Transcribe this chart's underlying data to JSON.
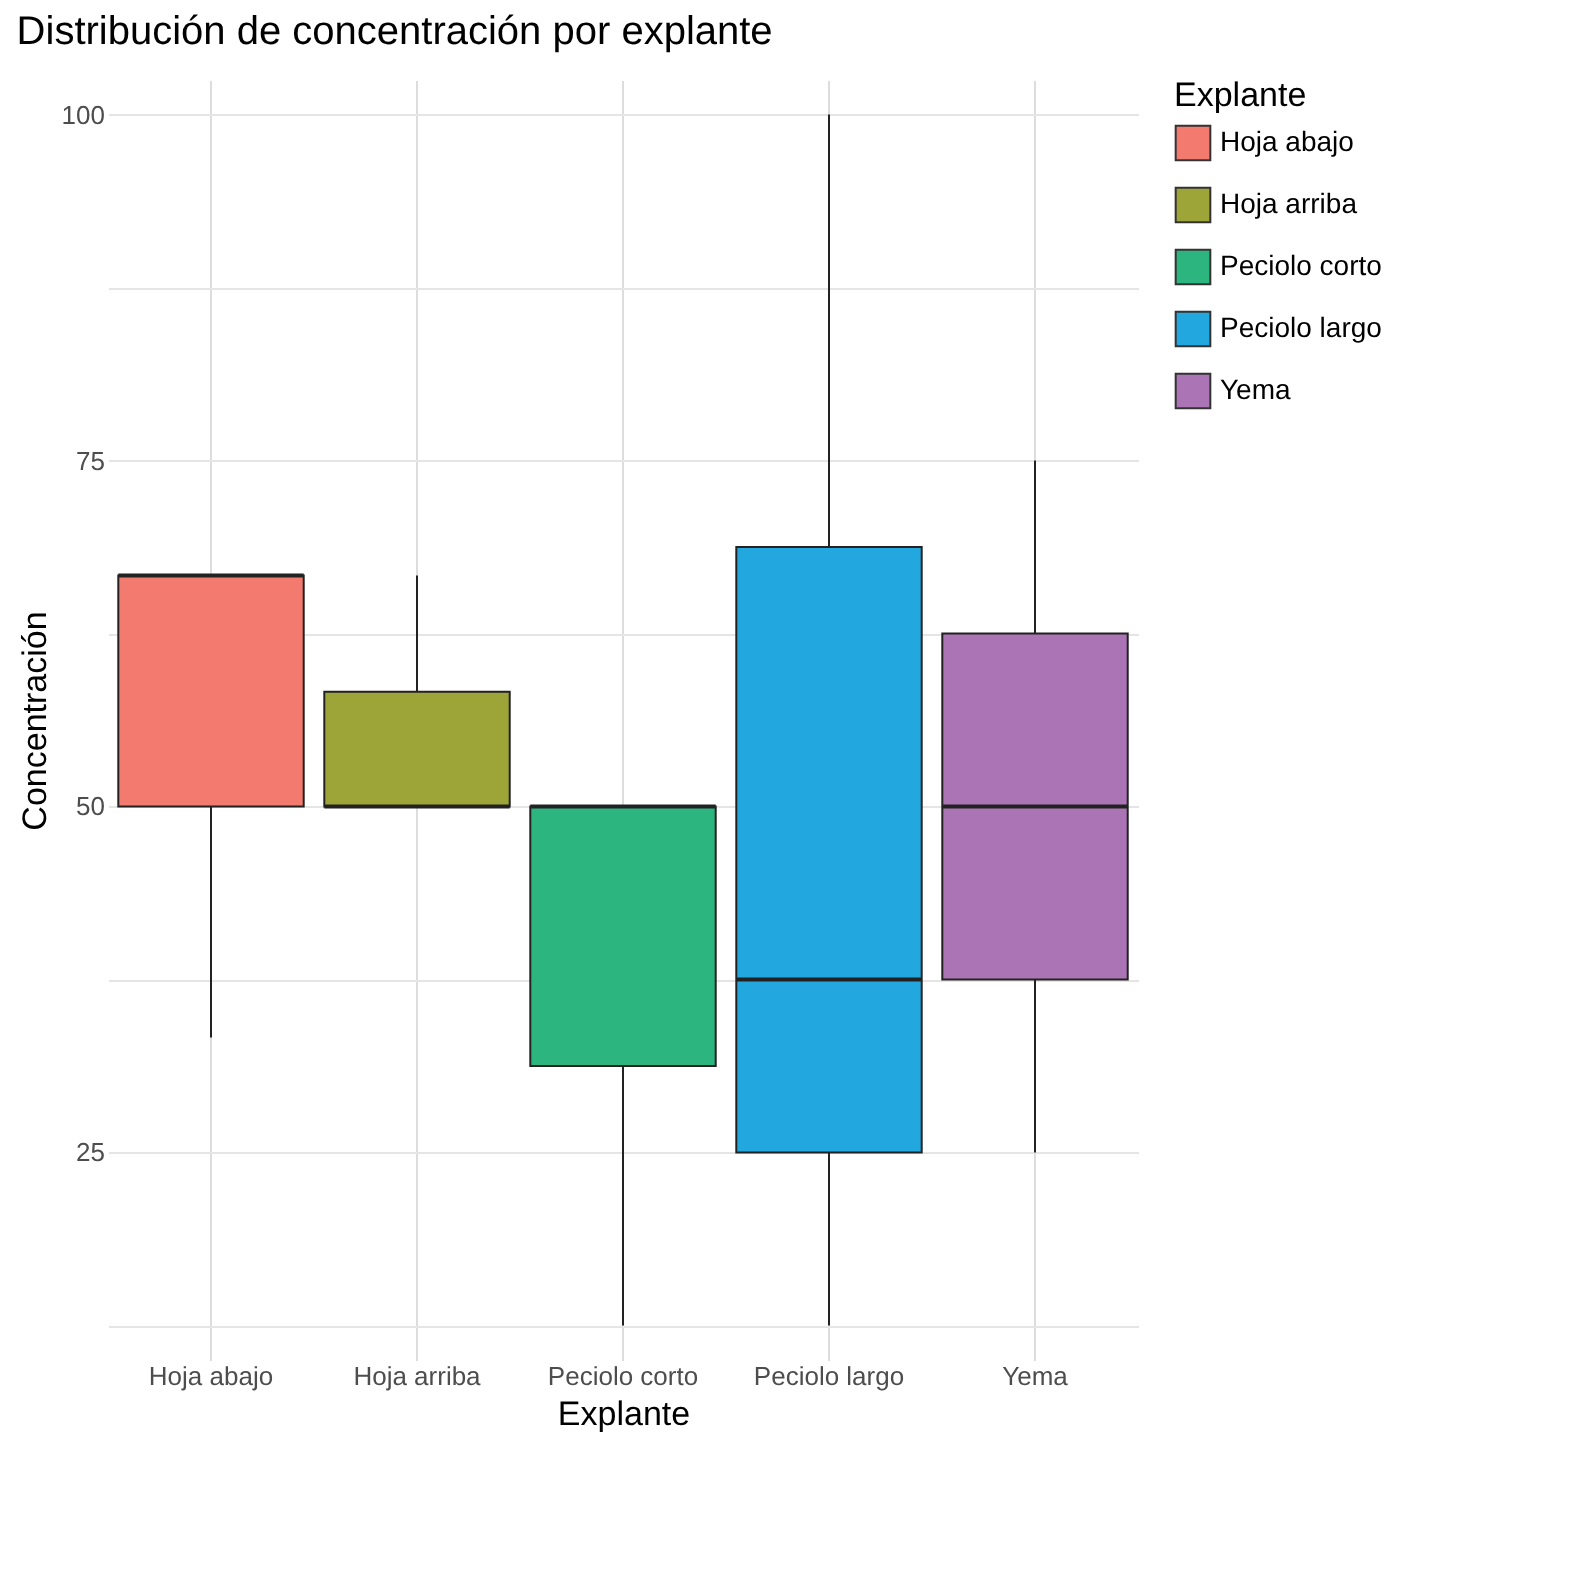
{
  "chart_data": {
    "type": "box",
    "title": "Distribución de concentración por explante",
    "xlabel": "Explante",
    "ylabel": "Concentración",
    "legend_title": "Explante",
    "categories": [
      "Hoja abajo",
      "Hoja arriba",
      "Peciolo corto",
      "Peciolo largo",
      "Yema"
    ],
    "series": [
      {
        "name": "Hoja abajo",
        "color": "#f27a6f",
        "boxes": [
          {
            "low": 33.3,
            "q1": 50,
            "median": 66.7,
            "q3": 66.7,
            "high": 66.7
          },
          null,
          null,
          null,
          null
        ]
      },
      {
        "name": "Hoja arriba",
        "color": "#9ea538",
        "boxes": [
          null,
          {
            "low": 50,
            "q1": 50,
            "median": 50,
            "q3": 58.3,
            "high": 66.7
          },
          null,
          null,
          null
        ]
      },
      {
        "name": "Peciolo corto",
        "color": "#2cb57f",
        "boxes": [
          null,
          null,
          {
            "low": 12.5,
            "q1": 31.25,
            "median": 50,
            "q3": 50,
            "high": 50
          },
          null,
          null
        ]
      },
      {
        "name": "Peciolo largo",
        "color": "#22a7df",
        "boxes": [
          null,
          null,
          null,
          {
            "low": 12.5,
            "q1": 25,
            "median": 37.5,
            "q3": 68.75,
            "high": 100
          },
          null
        ]
      },
      {
        "name": "Yema",
        "color": "#aa74b5",
        "boxes": [
          null,
          null,
          null,
          null,
          {
            "low": 25,
            "q1": 37.5,
            "median": 50,
            "q3": 62.5,
            "high": 75
          }
        ]
      }
    ],
    "ylim": [
      10,
      102.5
    ],
    "yticks": [
      {
        "value": 12.5,
        "label": null
      },
      25,
      {
        "value": 37.5,
        "label": null
      },
      50,
      {
        "value": 62.5,
        "label": null
      },
      75,
      {
        "value": 87.5,
        "label": null
      },
      100
    ],
    "grid": true,
    "legend": "right"
  }
}
